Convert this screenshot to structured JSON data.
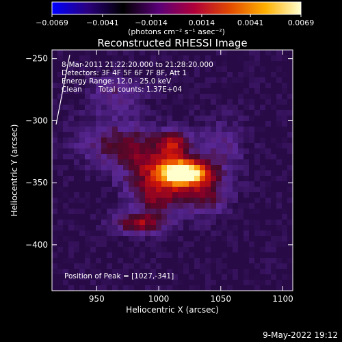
{
  "chart_data": {
    "type": "heatmap",
    "title": "Reconstructed RHESSI Image",
    "xlabel": "Heliocentric X (arcsec)",
    "ylabel": "Heliocentric Y (arcsec)",
    "xlim": [
      914,
      1108
    ],
    "ylim": [
      -437,
      -243
    ],
    "x_ticks": [
      950,
      1000,
      1050,
      1100
    ],
    "y_ticks": [
      -400,
      -350,
      -300,
      -250
    ],
    "colorbar": {
      "range": [
        -0.0069,
        0.0069
      ],
      "tick_values": [
        -0.0069,
        -0.0041,
        -0.0014,
        0.0014,
        0.0041,
        0.0069
      ],
      "tick_labels": [
        "−0.0069",
        "−0.0041",
        "−0.0014",
        "0.0014",
        "0.0041",
        "0.0069"
      ],
      "units_label": "(photons cm⁻² s⁻¹ asec⁻²)",
      "colormap": [
        "#0000ff",
        "#2a007e",
        "#000000",
        "#5a0078",
        "#b0003a",
        "#e24a00",
        "#ffb000",
        "#ffffd0"
      ]
    },
    "peak": {
      "x": 1027,
      "y": -341
    },
    "sources": [
      {
        "x": 1020,
        "y": -342,
        "amp": 1.0,
        "sx": 13,
        "sy": 7
      },
      {
        "x": 997,
        "y": -338,
        "amp": 0.4,
        "sx": 18,
        "sy": 14
      },
      {
        "x": 1013,
        "y": -318,
        "amp": 0.42,
        "sx": 9,
        "sy": 7
      },
      {
        "x": 985,
        "y": -383,
        "amp": 0.45,
        "sx": 14,
        "sy": 6
      },
      {
        "x": 967,
        "y": -318,
        "amp": 0.28,
        "sx": 22,
        "sy": 14
      },
      {
        "x": 965,
        "y": -278,
        "amp": 0.2,
        "sx": 15,
        "sy": 10
      },
      {
        "x": 1037,
        "y": -358,
        "amp": 0.35,
        "sx": 13,
        "sy": 12
      },
      {
        "x": 1000,
        "y": -362,
        "amp": 0.35,
        "sx": 14,
        "sy": 10
      },
      {
        "x": 1050,
        "y": -322,
        "amp": 0.18,
        "sx": 13,
        "sy": 17
      }
    ],
    "grid": false,
    "legend": "none"
  },
  "annotations": {
    "time_range": "8-Mar-2011 21:22:20.000 to 21:28:20.000",
    "detectors": "Detectors: 3F 4F 5F 6F 7F 8F, Att 1",
    "energy": "Energy Range: 12.0 - 25.0 keV",
    "clean": "Clean",
    "total_counts": "Total counts: 1.37E+04",
    "peak_text": "Position of Peak = [1027,-341]"
  },
  "footer": {
    "date": "9-May-2022 19:12"
  }
}
